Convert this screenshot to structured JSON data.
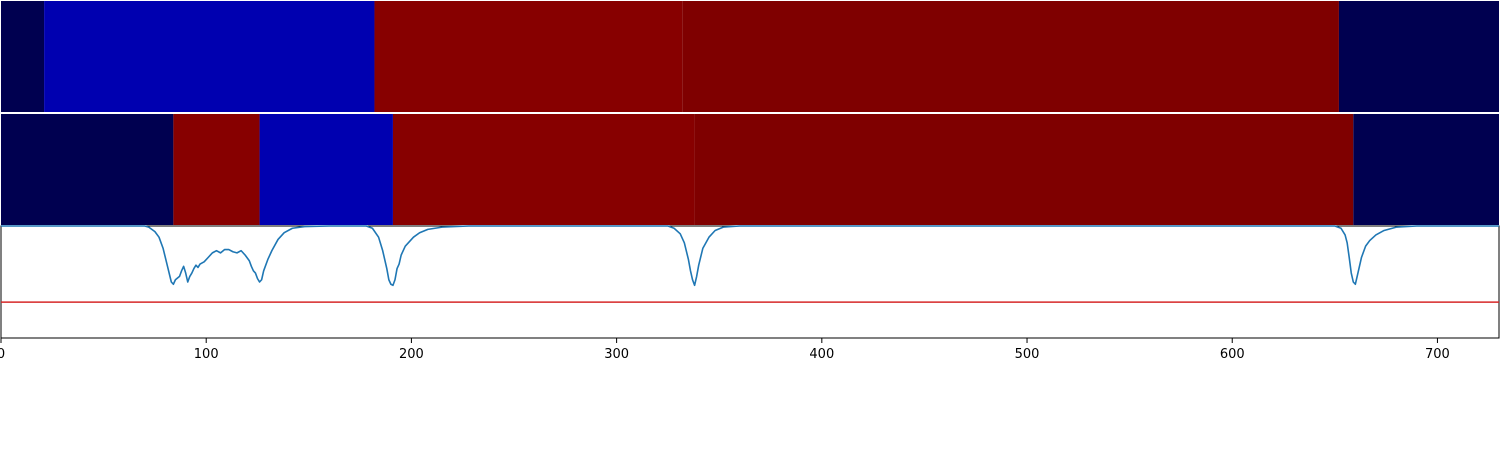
{
  "chart_data": {
    "type": "heatmap",
    "xlim": [
      0,
      730
    ],
    "x_ticks": [
      0,
      100,
      200,
      300,
      400,
      500,
      600,
      700
    ],
    "x_tick_labels": [
      "0",
      "100",
      "200",
      "300",
      "400",
      "500",
      "600",
      "700"
    ],
    "grid": false,
    "heatmap_rows": [
      {
        "segments": [
          {
            "start": 0,
            "end": 21,
            "color": "#000050"
          },
          {
            "start": 21,
            "end": 182,
            "color": "#0000b0"
          },
          {
            "start": 182,
            "end": 332,
            "color": "#870000"
          },
          {
            "start": 332,
            "end": 652,
            "color": "#7f0000"
          },
          {
            "start": 652,
            "end": 730,
            "color": "#000050"
          }
        ]
      },
      {
        "segments": [
          {
            "start": 0,
            "end": 84,
            "color": "#000050"
          },
          {
            "start": 84,
            "end": 126,
            "color": "#870000"
          },
          {
            "start": 126,
            "end": 191,
            "color": "#0000b0"
          },
          {
            "start": 191,
            "end": 338,
            "color": "#870000"
          },
          {
            "start": 338,
            "end": 659,
            "color": "#7f0000"
          },
          {
            "start": 659,
            "end": 730,
            "color": "#000050"
          }
        ]
      }
    ],
    "line_panel": {
      "ylim": [
        0,
        1
      ],
      "line_color": "#1f77b4",
      "points": [
        [
          0,
          1.0
        ],
        [
          70,
          1.0
        ],
        [
          72,
          0.99
        ],
        [
          75,
          0.95
        ],
        [
          77,
          0.9
        ],
        [
          79,
          0.8
        ],
        [
          81,
          0.65
        ],
        [
          83,
          0.5
        ],
        [
          84,
          0.48
        ],
        [
          85,
          0.52
        ],
        [
          87,
          0.55
        ],
        [
          88,
          0.6
        ],
        [
          89,
          0.64
        ],
        [
          90,
          0.58
        ],
        [
          91,
          0.5
        ],
        [
          92,
          0.55
        ],
        [
          93,
          0.58
        ],
        [
          94,
          0.62
        ],
        [
          95,
          0.65
        ],
        [
          96,
          0.63
        ],
        [
          97,
          0.66
        ],
        [
          99,
          0.68
        ],
        [
          101,
          0.72
        ],
        [
          103,
          0.76
        ],
        [
          105,
          0.78
        ],
        [
          107,
          0.76
        ],
        [
          109,
          0.79
        ],
        [
          111,
          0.79
        ],
        [
          113,
          0.77
        ],
        [
          115,
          0.76
        ],
        [
          117,
          0.78
        ],
        [
          119,
          0.74
        ],
        [
          121,
          0.69
        ],
        [
          122,
          0.64
        ],
        [
          123,
          0.6
        ],
        [
          124,
          0.58
        ],
        [
          125,
          0.53
        ],
        [
          126,
          0.5
        ],
        [
          127,
          0.52
        ],
        [
          128,
          0.6
        ],
        [
          130,
          0.7
        ],
        [
          132,
          0.78
        ],
        [
          135,
          0.88
        ],
        [
          138,
          0.94
        ],
        [
          142,
          0.98
        ],
        [
          148,
          0.995
        ],
        [
          160,
          1.0
        ],
        [
          178,
          1.0
        ],
        [
          181,
          0.98
        ],
        [
          184,
          0.9
        ],
        [
          186,
          0.78
        ],
        [
          188,
          0.62
        ],
        [
          189,
          0.52
        ],
        [
          190,
          0.48
        ],
        [
          191,
          0.47
        ],
        [
          192,
          0.52
        ],
        [
          193,
          0.62
        ],
        [
          194,
          0.66
        ],
        [
          195,
          0.74
        ],
        [
          197,
          0.82
        ],
        [
          199,
          0.86
        ],
        [
          201,
          0.9
        ],
        [
          204,
          0.94
        ],
        [
          208,
          0.97
        ],
        [
          215,
          0.99
        ],
        [
          228,
          1.0
        ],
        [
          325,
          1.0
        ],
        [
          328,
          0.98
        ],
        [
          331,
          0.93
        ],
        [
          333,
          0.85
        ],
        [
          335,
          0.7
        ],
        [
          336,
          0.6
        ],
        [
          337,
          0.52
        ],
        [
          338,
          0.47
        ],
        [
          339,
          0.55
        ],
        [
          340,
          0.65
        ],
        [
          342,
          0.8
        ],
        [
          345,
          0.9
        ],
        [
          348,
          0.96
        ],
        [
          352,
          0.99
        ],
        [
          360,
          1.0
        ],
        [
          650,
          1.0
        ],
        [
          653,
          0.98
        ],
        [
          655,
          0.92
        ],
        [
          656,
          0.85
        ],
        [
          657,
          0.72
        ],
        [
          658,
          0.58
        ],
        [
          659,
          0.5
        ],
        [
          660,
          0.48
        ],
        [
          661,
          0.56
        ],
        [
          663,
          0.72
        ],
        [
          665,
          0.82
        ],
        [
          667,
          0.87
        ],
        [
          670,
          0.92
        ],
        [
          674,
          0.96
        ],
        [
          680,
          0.99
        ],
        [
          690,
          1.0
        ],
        [
          730,
          1.0
        ]
      ],
      "threshold": {
        "y": 0.32,
        "color": "#d62728"
      }
    }
  }
}
